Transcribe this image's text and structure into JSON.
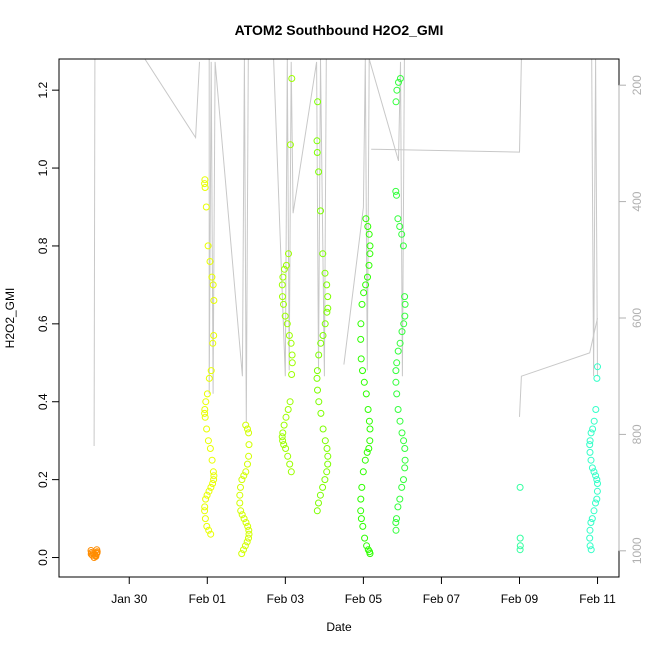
{
  "chart_data": {
    "type": "scatter",
    "title": "ATOM2 Southbound H2O2_GMI",
    "xlabel": "Date",
    "ylabel": "H2O2_GMI",
    "x_ticks": [
      "Jan 30",
      "Feb 01",
      "Feb 03",
      "Feb 05",
      "Feb 07",
      "Feb 09",
      "Feb 11"
    ],
    "x_tick_days": [
      30,
      32,
      34,
      36,
      38,
      40,
      42
    ],
    "xlim_days": [
      28.2,
      42.55
    ],
    "ylim": [
      -0.05,
      1.28
    ],
    "y_ticks": [
      0.0,
      0.2,
      0.4,
      0.6,
      0.8,
      1.0,
      1.2
    ],
    "y_tick_labels": [
      "0.0",
      "0.2",
      "0.4",
      "0.6",
      "0.8",
      "1.0",
      "1.2"
    ],
    "right_axis": {
      "ticks": [
        200,
        400,
        600,
        800,
        1000
      ],
      "tick_labels": [
        "200",
        "400",
        "600",
        "800",
        "1000"
      ],
      "lim": [
        1045,
        155
      ],
      "color": "#b0b0b0"
    },
    "series": [
      {
        "color": "#ff8c00",
        "day": 29.1,
        "spread": 0.08,
        "values": [
          0.0,
          0.005,
          0.01,
          0.012,
          0.015,
          0.02,
          0.003,
          0.008,
          0.011,
          0.006,
          0.013,
          0.018,
          0.009
        ]
      },
      {
        "color": "#e8ff00",
        "day": 32.05,
        "spread": 0.12,
        "values": [
          0.06,
          0.07,
          0.08,
          0.1,
          0.12,
          0.13,
          0.15,
          0.16,
          0.17,
          0.18,
          0.19,
          0.2,
          0.21,
          0.22,
          0.25,
          0.28,
          0.3,
          0.33,
          0.36,
          0.37,
          0.38,
          0.4,
          0.42,
          0.46,
          0.48,
          0.55,
          0.57,
          0.66,
          0.7,
          0.72,
          0.76,
          0.8,
          0.9,
          0.95,
          0.96,
          0.97
        ]
      },
      {
        "color": "#d2ff00",
        "day": 32.95,
        "spread": 0.12,
        "values": [
          0.01,
          0.02,
          0.03,
          0.04,
          0.05,
          0.06,
          0.07,
          0.08,
          0.09,
          0.1,
          0.11,
          0.12,
          0.14,
          0.16,
          0.18,
          0.2,
          0.21,
          0.22,
          0.24,
          0.26,
          0.29,
          0.32,
          0.33,
          0.34
        ]
      },
      {
        "color": "#9cff00",
        "day": 34.05,
        "spread": 0.13,
        "values": [
          0.22,
          0.24,
          0.26,
          0.28,
          0.29,
          0.3,
          0.31,
          0.32,
          0.34,
          0.36,
          0.38,
          0.4,
          0.47,
          0.5,
          0.52,
          0.55,
          0.57,
          0.6,
          0.62,
          0.65,
          0.67,
          0.7,
          0.72,
          0.74,
          0.75,
          0.78,
          1.06,
          1.23
        ]
      },
      {
        "color": "#7dff00",
        "day": 34.95,
        "spread": 0.14,
        "values": [
          0.12,
          0.14,
          0.16,
          0.18,
          0.2,
          0.22,
          0.24,
          0.26,
          0.28,
          0.3,
          0.33,
          0.37,
          0.4,
          0.43,
          0.46,
          0.48,
          0.52,
          0.55,
          0.57,
          0.6,
          0.63,
          0.64,
          0.67,
          0.7,
          0.73,
          0.78,
          0.89,
          0.99,
          1.04,
          1.07,
          1.17
        ]
      },
      {
        "color": "#2eff00",
        "day": 36.05,
        "spread": 0.12,
        "values": [
          0.01,
          0.015,
          0.02,
          0.03,
          0.05,
          0.08,
          0.1,
          0.12,
          0.15,
          0.18,
          0.22,
          0.25,
          0.27,
          0.28,
          0.3,
          0.33,
          0.35,
          0.38,
          0.42,
          0.45,
          0.48,
          0.51,
          0.56,
          0.6,
          0.65,
          0.68,
          0.7,
          0.72,
          0.75,
          0.78,
          0.8,
          0.83,
          0.85,
          0.87
        ]
      },
      {
        "color": "#33ff3c",
        "day": 36.95,
        "spread": 0.12,
        "values": [
          0.07,
          0.09,
          0.1,
          0.13,
          0.15,
          0.18,
          0.2,
          0.23,
          0.25,
          0.28,
          0.3,
          0.32,
          0.35,
          0.38,
          0.42,
          0.45,
          0.48,
          0.5,
          0.53,
          0.55,
          0.58,
          0.6,
          0.62,
          0.65,
          0.67,
          0.8,
          0.83,
          0.85,
          0.87,
          0.93,
          0.94,
          1.17,
          1.2,
          1.22,
          1.23
        ]
      },
      {
        "color": "#33ffa0",
        "day": 40.0,
        "spread": 0.02,
        "values": [
          0.02,
          0.03,
          0.05,
          0.18
        ]
      },
      {
        "color": "#33ffc8",
        "day": 41.9,
        "spread": 0.1,
        "values": [
          0.02,
          0.03,
          0.05,
          0.07,
          0.09,
          0.1,
          0.12,
          0.14,
          0.15,
          0.17,
          0.19,
          0.2,
          0.21,
          0.22,
          0.23,
          0.25,
          0.27,
          0.29,
          0.3,
          0.32,
          0.33,
          0.35,
          0.38,
          0.46,
          0.49
        ]
      }
    ],
    "profiles": [
      {
        "color": "#c8c8c8",
        "pressure_points": [
          [
            29.1,
            820
          ],
          [
            29.12,
            155
          ],
          [
            29.25,
            155
          ],
          [
            30.4,
            155
          ],
          [
            31.7,
            290
          ],
          [
            31.8,
            160
          ]
        ]
      },
      {
        "color": "#c8c8c8",
        "pressure_points": [
          [
            32.05,
            155
          ],
          [
            32.05,
            730
          ],
          [
            32.1,
            160
          ],
          [
            32.15,
            730
          ],
          [
            32.2,
            160
          ],
          [
            32.9,
            700
          ],
          [
            32.95,
            155
          ],
          [
            33.0,
            780
          ],
          [
            33.05,
            155
          ]
        ]
      },
      {
        "color": "#c8c8c8",
        "pressure_points": [
          [
            33.7,
            155
          ],
          [
            34.0,
            700
          ],
          [
            34.05,
            155
          ],
          [
            34.1,
            690
          ],
          [
            34.15,
            160
          ],
          [
            34.2,
            420
          ],
          [
            34.8,
            160
          ],
          [
            34.85,
            690
          ],
          [
            34.9,
            155
          ],
          [
            35.0,
            700
          ],
          [
            35.05,
            155
          ]
        ]
      },
      {
        "color": "#c8c8c8",
        "pressure_points": [
          [
            35.5,
            680
          ],
          [
            36.0,
            410
          ],
          [
            36.05,
            155
          ],
          [
            36.1,
            690
          ],
          [
            36.15,
            155
          ],
          [
            36.9,
            330
          ],
          [
            36.95,
            160
          ],
          [
            37.0,
            700
          ],
          [
            37.05,
            155
          ]
        ]
      },
      {
        "color": "#c8c8c8",
        "pressure_points": [
          [
            36.2,
            310
          ],
          [
            40.0,
            315
          ],
          [
            40.05,
            155
          ],
          [
            41.85,
            155
          ],
          [
            41.9,
            700
          ],
          [
            41.95,
            155
          ],
          [
            42.0,
            700
          ]
        ]
      },
      {
        "color": "#c8c8c8",
        "pressure_points": [
          [
            40.0,
            770
          ],
          [
            40.05,
            700
          ],
          [
            41.8,
            660
          ],
          [
            42.0,
            600
          ]
        ]
      }
    ]
  }
}
